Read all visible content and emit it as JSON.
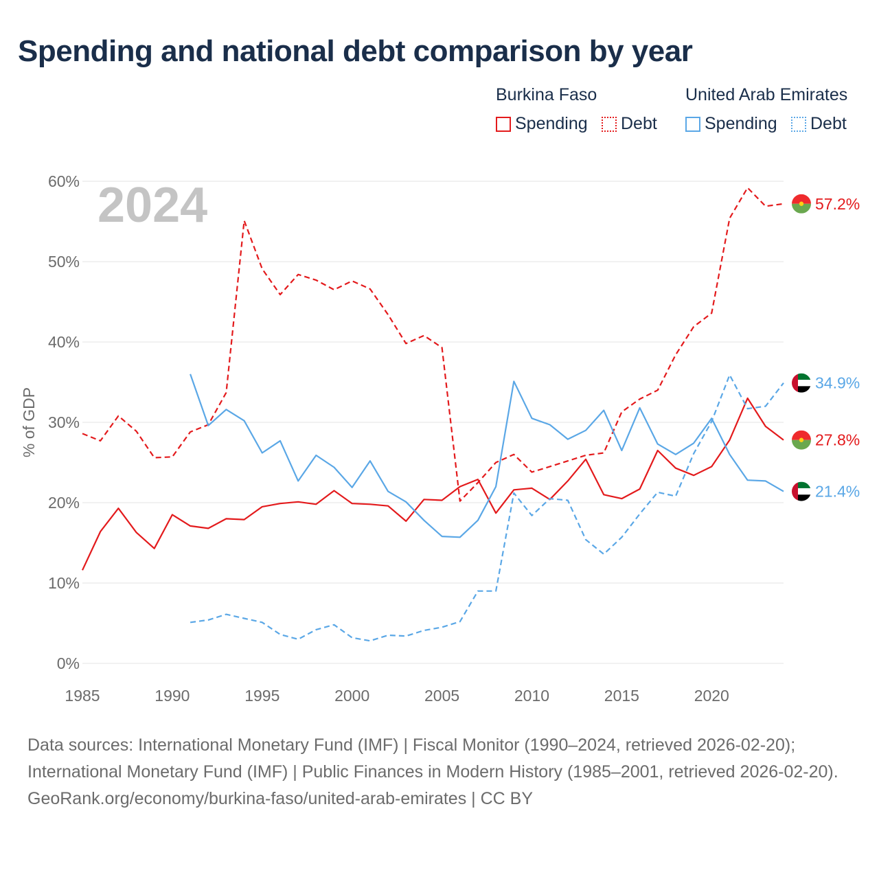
{
  "title": "Spending and national debt comparison by year",
  "legend": {
    "groups": [
      {
        "country": "Burkina Faso",
        "color": "#e31a1c",
        "items": [
          {
            "label": "Spending",
            "style": "solid"
          },
          {
            "label": "Debt",
            "style": "dotted"
          }
        ]
      },
      {
        "country": "United Arab Emirates",
        "color": "#5aa7e6",
        "items": [
          {
            "label": "Spending",
            "style": "solid"
          },
          {
            "label": "Debt",
            "style": "dotted"
          }
        ]
      }
    ]
  },
  "chart_data": {
    "type": "line",
    "year_watermark": "2024",
    "ylabel": "% of GDP",
    "xlabel": "",
    "xlim": [
      1985,
      2024
    ],
    "ylim": [
      0,
      60
    ],
    "x_ticks": [
      1985,
      1990,
      1995,
      2000,
      2005,
      2010,
      2015,
      2020
    ],
    "y_ticks": [
      0,
      10,
      20,
      30,
      40,
      50,
      60
    ],
    "y_tick_labels": [
      "0%",
      "10%",
      "20%",
      "30%",
      "40%",
      "50%",
      "60%"
    ],
    "grid": true,
    "series": [
      {
        "name": "Burkina Faso Spending",
        "country": "Burkina Faso",
        "metric": "Spending",
        "color": "#e31a1c",
        "dash": "solid",
        "end_label": "27.8%",
        "flag": "burkina-faso-flag",
        "start_year": 1985,
        "values": [
          11.6,
          16.4,
          19.3,
          16.3,
          14.3,
          18.5,
          17.1,
          16.8,
          18.0,
          17.9,
          19.5,
          19.9,
          20.1,
          19.8,
          21.5,
          19.9,
          19.8,
          19.6,
          17.7,
          20.4,
          20.3,
          22.0,
          22.9,
          18.7,
          21.6,
          21.8,
          20.4,
          22.7,
          25.4,
          21.0,
          20.5,
          21.7,
          26.5,
          24.3,
          23.4,
          24.5,
          27.8,
          33.0,
          29.5,
          27.8
        ]
      },
      {
        "name": "Burkina Faso Debt",
        "country": "Burkina Faso",
        "metric": "Debt",
        "color": "#e31a1c",
        "dash": "dashed",
        "end_label": "57.2%",
        "flag": "burkina-faso-flag",
        "start_year": 1985,
        "values": [
          28.6,
          27.7,
          30.8,
          28.9,
          25.6,
          25.7,
          28.8,
          29.7,
          33.7,
          55.1,
          49.1,
          45.9,
          48.4,
          47.7,
          46.5,
          47.6,
          46.6,
          43.4,
          39.8,
          40.8,
          39.3,
          20.2,
          22.5,
          25.0,
          26.0,
          23.8,
          24.5,
          25.2,
          25.9,
          26.2,
          31.3,
          32.9,
          34.0,
          38.4,
          41.9,
          43.6,
          55.4,
          59.2,
          56.9,
          57.2
        ]
      },
      {
        "name": "United Arab Emirates Spending",
        "country": "United Arab Emirates",
        "metric": "Spending",
        "color": "#5aa7e6",
        "dash": "solid",
        "end_label": "21.4%",
        "flag": "uae-flag",
        "start_year": 1991,
        "values": [
          36.0,
          29.6,
          31.6,
          30.2,
          26.2,
          27.7,
          22.7,
          25.9,
          24.4,
          21.9,
          25.2,
          21.4,
          20.1,
          17.8,
          15.8,
          15.7,
          17.8,
          22.0,
          35.1,
          30.5,
          29.7,
          27.9,
          29.0,
          31.5,
          26.5,
          31.8,
          27.3,
          26.0,
          27.4,
          30.5,
          26.0,
          22.8,
          22.7,
          21.4
        ]
      },
      {
        "name": "United Arab Emirates Debt",
        "country": "United Arab Emirates",
        "metric": "Debt",
        "color": "#5aa7e6",
        "dash": "dashed",
        "end_label": "34.9%",
        "flag": "uae-flag",
        "start_year": 1991,
        "values": [
          5.1,
          5.4,
          6.1,
          5.6,
          5.1,
          3.6,
          3.0,
          4.2,
          4.8,
          3.2,
          2.8,
          3.5,
          3.4,
          4.1,
          4.5,
          5.2,
          9.0,
          9.0,
          21.2,
          18.4,
          20.5,
          20.3,
          15.4,
          13.6,
          15.7,
          18.6,
          21.3,
          20.8,
          26.1,
          30.1,
          35.9,
          31.7,
          32.0,
          34.9
        ]
      }
    ]
  },
  "footer": {
    "line1": "Data sources: International Monetary Fund (IMF) | Fiscal Monitor (1990–2024, retrieved 2026-02-20); International Monetary Fund (IMF) | Public Finances in Modern History (1985–2001, retrieved 2026-02-20).",
    "line2": "GeoRank.org/economy/burkina-faso/united-arab-emirates | CC BY"
  }
}
